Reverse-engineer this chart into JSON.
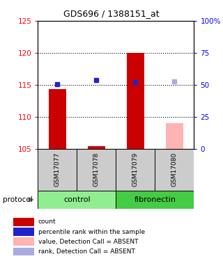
{
  "title": "GDS696 / 1388151_at",
  "samples": [
    "GSM17077",
    "GSM17078",
    "GSM17079",
    "GSM17080"
  ],
  "bar_values": [
    114.3,
    105.4,
    120.0,
    109.0
  ],
  "bar_colors": [
    "#cc0000",
    "#cc0000",
    "#cc0000",
    "#ffb3b3"
  ],
  "rank_values": [
    115.05,
    115.7,
    115.4,
    115.5
  ],
  "rank_colors": [
    "#2222cc",
    "#2222cc",
    "#2222cc",
    "#aaaadd"
  ],
  "ylim_left": [
    105,
    125
  ],
  "ylim_right": [
    0,
    100
  ],
  "yticks_left": [
    105,
    110,
    115,
    120,
    125
  ],
  "yticks_right": [
    0,
    25,
    50,
    75,
    100
  ],
  "ytick_right_labels": [
    "0",
    "25",
    "50",
    "75",
    "100%"
  ],
  "bar_width": 0.45,
  "group_spans": [
    [
      "control",
      0,
      1
    ],
    [
      "fibronectin",
      2,
      3
    ]
  ],
  "group_color_control": "#90ee90",
  "group_color_fibronectin": "#44cc44",
  "protocol_label": "protocol",
  "legend_items": [
    {
      "label": "count",
      "color": "#cc0000"
    },
    {
      "label": "percentile rank within the sample",
      "color": "#2222cc"
    },
    {
      "label": "value, Detection Call = ABSENT",
      "color": "#ffb3b3"
    },
    {
      "label": "rank, Detection Call = ABSENT",
      "color": "#aaaadd"
    }
  ]
}
